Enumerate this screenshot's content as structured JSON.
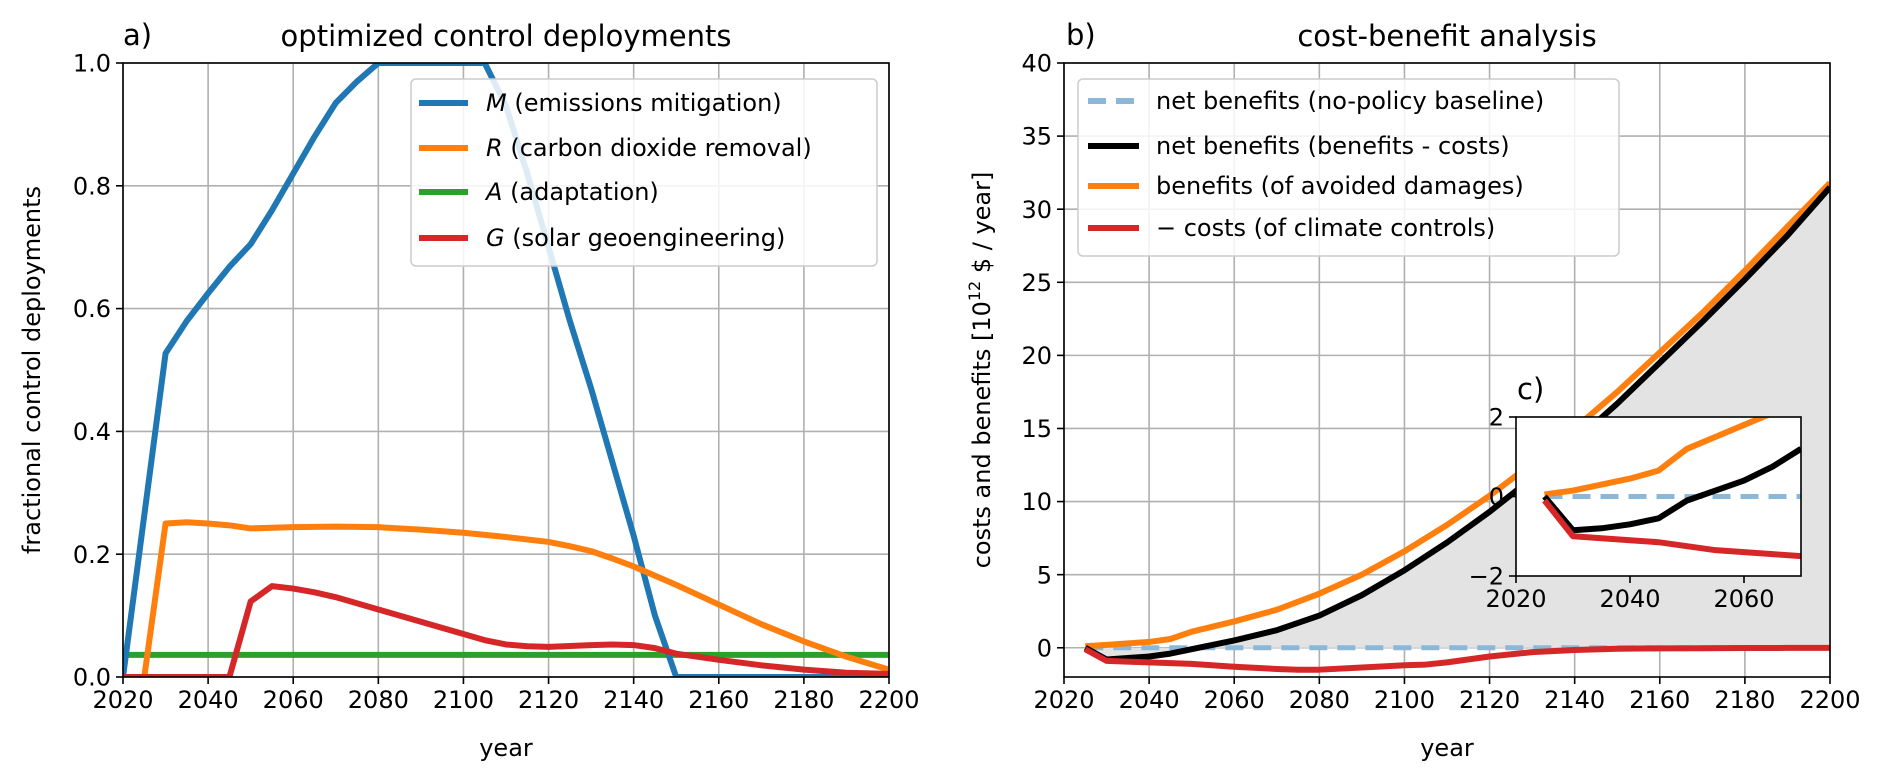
{
  "chart_data": [
    {
      "type": "line",
      "panel_label": "a)",
      "title": "optimized control deployments",
      "xlabel": "year",
      "ylabel": "fractional control deployments",
      "xlim": [
        2020,
        2200
      ],
      "ylim": [
        0,
        1.0
      ],
      "xticks": [
        2020,
        2040,
        2060,
        2080,
        2100,
        2120,
        2140,
        2160,
        2180,
        2200
      ],
      "yticks": [
        0.0,
        0.2,
        0.4,
        0.6,
        0.8,
        1.0
      ],
      "ytick_labels": [
        "0.0",
        "0.2",
        "0.4",
        "0.6",
        "0.8",
        "1.0"
      ],
      "grid": true,
      "legend_position": "top-right",
      "series": [
        {
          "name": "M",
          "legend_desc": "(emissions mitigation)",
          "color": "#1f77b4",
          "x": [
            2020,
            2030,
            2035,
            2040,
            2045,
            2050,
            2055,
            2060,
            2065,
            2070,
            2075,
            2080,
            2090,
            2100,
            2105,
            2110,
            2115,
            2120,
            2125,
            2130,
            2135,
            2140,
            2145,
            2150,
            2200
          ],
          "y": [
            0.0,
            0.527,
            0.58,
            0.625,
            0.668,
            0.705,
            0.76,
            0.82,
            0.88,
            0.935,
            0.97,
            1.0,
            1.0,
            1.0,
            1.0,
            0.93,
            0.82,
            0.7,
            0.58,
            0.47,
            0.35,
            0.23,
            0.1,
            0.0,
            0.0
          ]
        },
        {
          "name": "R",
          "legend_desc": "(carbon dioxide removal)",
          "color": "#ff7f0e",
          "x": [
            2020,
            2025,
            2030,
            2035,
            2040,
            2045,
            2050,
            2060,
            2070,
            2080,
            2090,
            2100,
            2110,
            2120,
            2125,
            2130,
            2135,
            2140,
            2150,
            2160,
            2170,
            2180,
            2190,
            2200
          ],
          "y": [
            0.0,
            0.0,
            0.25,
            0.252,
            0.25,
            0.247,
            0.242,
            0.244,
            0.245,
            0.244,
            0.24,
            0.235,
            0.228,
            0.22,
            0.213,
            0.205,
            0.193,
            0.18,
            0.15,
            0.118,
            0.086,
            0.058,
            0.033,
            0.012
          ]
        },
        {
          "name": "A",
          "legend_desc": "(adaptation)",
          "color": "#2ca02c",
          "x": [
            2020,
            2200
          ],
          "y": [
            0.036,
            0.036
          ]
        },
        {
          "name": "G",
          "legend_desc": "(solar geoengineering)",
          "color": "#d62728",
          "x": [
            2020,
            2045,
            2050,
            2055,
            2060,
            2065,
            2070,
            2080,
            2090,
            2100,
            2105,
            2110,
            2115,
            2120,
            2130,
            2135,
            2140,
            2145,
            2150,
            2160,
            2170,
            2180,
            2190,
            2200
          ],
          "y": [
            0.0,
            0.0,
            0.123,
            0.148,
            0.144,
            0.138,
            0.13,
            0.11,
            0.09,
            0.07,
            0.06,
            0.053,
            0.05,
            0.049,
            0.052,
            0.053,
            0.052,
            0.047,
            0.038,
            0.028,
            0.019,
            0.012,
            0.007,
            0.005
          ]
        }
      ]
    },
    {
      "type": "line",
      "panel_label": "b)",
      "title": "cost-benefit analysis",
      "xlabel": "year",
      "ylabel_prefix": "costs and benefits [10",
      "ylabel_exponent": "12",
      "ylabel_suffix": " $ / year]",
      "xlim": [
        2020,
        2200
      ],
      "ylim": [
        -2,
        40
      ],
      "xticks": [
        2020,
        2040,
        2060,
        2080,
        2100,
        2120,
        2140,
        2160,
        2180,
        2200
      ],
      "yticks": [
        0,
        5,
        10,
        15,
        20,
        25,
        30,
        35,
        40
      ],
      "ytick_labels": [
        "0",
        "5",
        "10",
        "15",
        "20",
        "25",
        "30",
        "35",
        "40"
      ],
      "grid": true,
      "legend_position": "top-left",
      "shaded_region": "between net benefits and net benefits (no-policy baseline), grey",
      "series": [
        {
          "name": "net benefits (no-policy baseline)",
          "color": "#8bb8d8",
          "style": "dashed",
          "x": [
            2025,
            2200
          ],
          "y": [
            0,
            0
          ]
        },
        {
          "name": "net benefits (benefits - costs)",
          "color": "#000000",
          "x": [
            2025,
            2030,
            2040,
            2045,
            2050,
            2060,
            2070,
            2080,
            2090,
            2100,
            2110,
            2120,
            2130,
            2140,
            2150,
            2160,
            2170,
            2180,
            2190,
            2200
          ],
          "y": [
            0,
            -0.8,
            -0.6,
            -0.4,
            -0.1,
            0.5,
            1.2,
            2.2,
            3.6,
            5.3,
            7.2,
            9.3,
            11.6,
            14.1,
            16.7,
            19.5,
            22.3,
            25.2,
            28.2,
            31.5
          ]
        },
        {
          "name": "benefits (of avoided damages)",
          "color": "#ff7f0e",
          "x": [
            2025,
            2030,
            2040,
            2045,
            2050,
            2060,
            2070,
            2080,
            2090,
            2100,
            2110,
            2120,
            2130,
            2140,
            2150,
            2160,
            2170,
            2180,
            2190,
            2200
          ],
          "y": [
            0.1,
            0.2,
            0.4,
            0.6,
            1.1,
            1.8,
            2.6,
            3.7,
            5.0,
            6.6,
            8.4,
            10.4,
            12.6,
            15.0,
            17.5,
            20.2,
            22.9,
            25.8,
            28.8,
            31.8
          ]
        },
        {
          "name": "− costs (of climate controls)",
          "color": "#d62728",
          "x": [
            2025,
            2030,
            2040,
            2045,
            2050,
            2060,
            2070,
            2075,
            2080,
            2090,
            2100,
            2105,
            2110,
            2120,
            2130,
            2140,
            2150,
            2160,
            2170,
            2180,
            2190,
            2200
          ],
          "y": [
            -0.1,
            -0.9,
            -1.0,
            -1.05,
            -1.1,
            -1.3,
            -1.45,
            -1.5,
            -1.5,
            -1.35,
            -1.2,
            -1.15,
            -1.0,
            -0.6,
            -0.3,
            -0.15,
            -0.07,
            -0.04,
            -0.03,
            -0.02,
            -0.01,
            -0.01
          ]
        }
      ]
    },
    {
      "type": "line",
      "panel_label": "c)",
      "inset_of": "b)",
      "xlim": [
        2020,
        2070
      ],
      "ylim": [
        -2,
        2
      ],
      "xticks": [
        2020,
        2040,
        2060
      ],
      "yticks": [
        -2,
        0,
        2
      ],
      "ytick_labels": [
        "−2",
        "0",
        "2"
      ],
      "grid": false,
      "series": [
        {
          "name": "net benefits (no-policy baseline)",
          "color": "#8bb8d8",
          "style": "dashed",
          "x": [
            2025,
            2070
          ],
          "y": [
            0,
            0
          ]
        },
        {
          "name": "net benefits (benefits - costs)",
          "color": "#000000",
          "x": [
            2025,
            2030,
            2035,
            2040,
            2045,
            2050,
            2055,
            2060,
            2065,
            2070
          ],
          "y": [
            0,
            -0.85,
            -0.8,
            -0.7,
            -0.55,
            -0.1,
            0.15,
            0.4,
            0.75,
            1.2
          ]
        },
        {
          "name": "benefits (of avoided damages)",
          "color": "#ff7f0e",
          "x": [
            2025,
            2030,
            2035,
            2040,
            2045,
            2050,
            2055,
            2060,
            2065,
            2070
          ],
          "y": [
            0.05,
            0.15,
            0.3,
            0.45,
            0.65,
            1.2,
            1.5,
            1.8,
            2.1,
            2.5
          ]
        },
        {
          "name": "− costs (of climate controls)",
          "color": "#d62728",
          "x": [
            2025,
            2030,
            2035,
            2040,
            2045,
            2050,
            2055,
            2060,
            2065,
            2070
          ],
          "y": [
            -0.1,
            -1.0,
            -1.05,
            -1.1,
            -1.15,
            -1.25,
            -1.35,
            -1.4,
            -1.45,
            -1.5
          ]
        }
      ]
    }
  ]
}
